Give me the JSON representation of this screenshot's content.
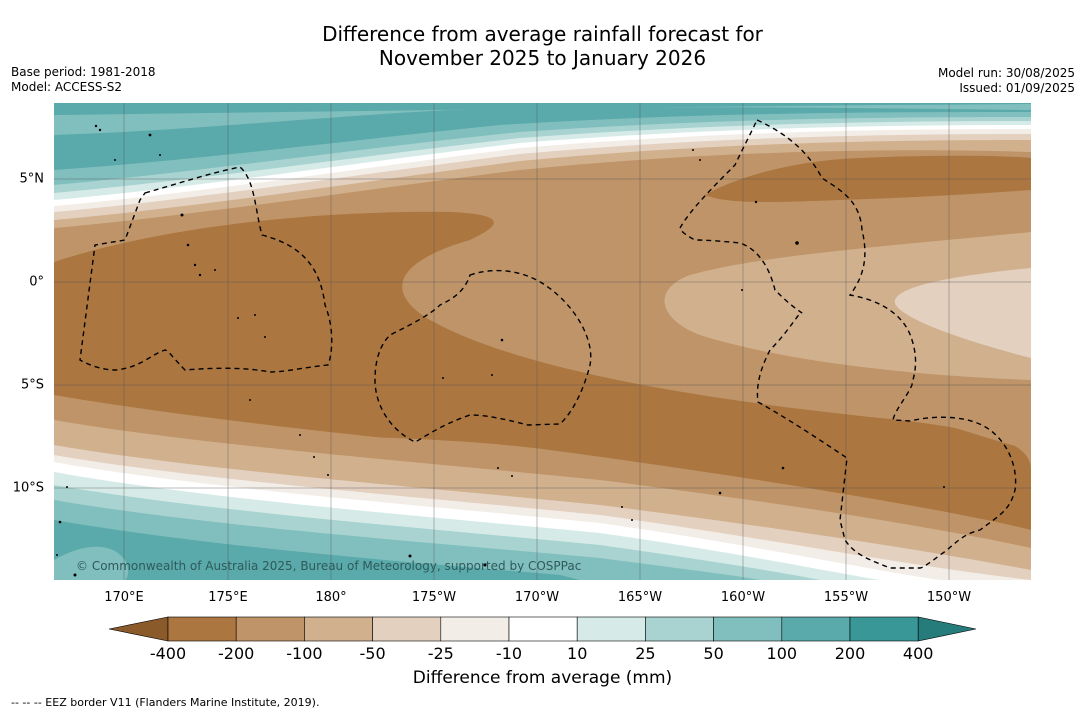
{
  "title_line1": "Difference from average rainfall forecast for",
  "title_line2": "November 2025 to January 2026",
  "base_period": "Base period: 1981-2018",
  "model": "Model: ACCESS-S2",
  "model_run": "Model run: 30/08/2025",
  "issued": "Issued: 01/09/2025",
  "copyright": "© Commonwealth of Australia 2025, Bureau of Meteorology, supported by COSPPac",
  "lon_ticks": [
    "170°E",
    "175°E",
    "180°",
    "175°W",
    "170°W",
    "165°W",
    "160°W",
    "155°W",
    "150°W"
  ],
  "lat_ticks": [
    "5°N",
    "0°",
    "5°S",
    "10°S"
  ],
  "colorbar": {
    "title": "Difference from average (mm)",
    "labels": [
      "-400",
      "-200",
      "-100",
      "-50",
      "-25",
      "-10",
      "10",
      "25",
      "50",
      "100",
      "200",
      "400"
    ],
    "colors": [
      "#8b5a2b",
      "#ab7640",
      "#bf9468",
      "#d1b08e",
      "#e3d0bf",
      "#f3ede8",
      "#ffffff",
      "#d6ebe8",
      "#a8d3d0",
      "#80bfbd",
      "#5aa9ab",
      "#3a9797",
      "#267b7b"
    ]
  },
  "footnote": "-- -- -- EEZ border V11 (Flanders Marine Institute, 2019)."
}
